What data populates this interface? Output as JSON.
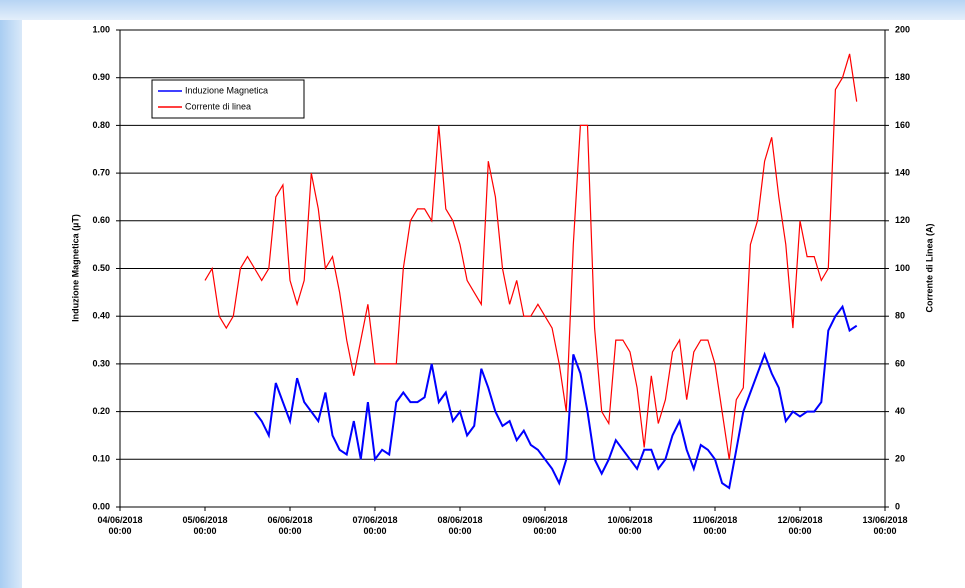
{
  "chart_data": {
    "type": "line",
    "y_label": "Induzione Magnetica (µT)",
    "y2_label": "Corrente di Linea (A)",
    "legend": "top-left",
    "grid": true,
    "xlim": [
      "04/06/2018 00:00",
      "13/06/2018 00:00"
    ],
    "xticks": [
      "04/06/2018 00:00",
      "05/06/2018 00:00",
      "06/06/2018 00:00",
      "07/06/2018 00:00",
      "08/06/2018 00:00",
      "09/06/2018 00:00",
      "10/06/2018 00:00",
      "11/06/2018 00:00",
      "12/06/2018 00:00",
      "13/06/2018 00:00"
    ],
    "ylim": [
      0,
      1
    ],
    "yticks": [
      {
        "value": 0,
        "label": "0.00"
      },
      {
        "value": 0.1,
        "label": "0.10"
      },
      {
        "value": 0.2,
        "label": "0.20"
      },
      {
        "value": 0.3,
        "label": "0.30"
      },
      {
        "value": 0.4,
        "label": "0.40"
      },
      {
        "value": 0.5,
        "label": "0.50"
      },
      {
        "value": 0.6,
        "label": "0.60"
      },
      {
        "value": 0.7,
        "label": "0.70"
      },
      {
        "value": 0.8,
        "label": "0.80"
      },
      {
        "value": 0.9,
        "label": "0.90"
      },
      {
        "value": 1,
        "label": "1.00"
      }
    ],
    "y2lim": [
      0,
      200
    ],
    "y2ticks": [
      0,
      20,
      40,
      60,
      80,
      100,
      120,
      140,
      160,
      180,
      200
    ],
    "x": [
      "05/06/2018 00:00",
      "05/06/2018 02:00",
      "05/06/2018 04:00",
      "05/06/2018 06:00",
      "05/06/2018 08:00",
      "05/06/2018 10:00",
      "05/06/2018 12:00",
      "05/06/2018 14:00",
      "05/06/2018 16:00",
      "05/06/2018 18:00",
      "05/06/2018 20:00",
      "05/06/2018 22:00",
      "06/06/2018 00:00",
      "06/06/2018 02:00",
      "06/06/2018 04:00",
      "06/06/2018 06:00",
      "06/06/2018 08:00",
      "06/06/2018 10:00",
      "06/06/2018 12:00",
      "06/06/2018 14:00",
      "06/06/2018 16:00",
      "06/06/2018 18:00",
      "06/06/2018 20:00",
      "06/06/2018 22:00",
      "07/06/2018 00:00",
      "07/06/2018 02:00",
      "07/06/2018 04:00",
      "07/06/2018 06:00",
      "07/06/2018 08:00",
      "07/06/2018 10:00",
      "07/06/2018 12:00",
      "07/06/2018 14:00",
      "07/06/2018 16:00",
      "07/06/2018 18:00",
      "07/06/2018 20:00",
      "07/06/2018 22:00",
      "08/06/2018 00:00",
      "08/06/2018 02:00",
      "08/06/2018 04:00",
      "08/06/2018 06:00",
      "08/06/2018 08:00",
      "08/06/2018 10:00",
      "08/06/2018 12:00",
      "08/06/2018 14:00",
      "08/06/2018 16:00",
      "08/06/2018 18:00",
      "08/06/2018 20:00",
      "08/06/2018 22:00",
      "09/06/2018 00:00",
      "09/06/2018 02:00",
      "09/06/2018 04:00",
      "09/06/2018 06:00",
      "09/06/2018 08:00",
      "09/06/2018 10:00",
      "09/06/2018 12:00",
      "09/06/2018 14:00",
      "09/06/2018 16:00",
      "09/06/2018 18:00",
      "09/06/2018 20:00",
      "09/06/2018 22:00",
      "10/06/2018 00:00",
      "10/06/2018 02:00",
      "10/06/2018 04:00",
      "10/06/2018 06:00",
      "10/06/2018 08:00",
      "10/06/2018 10:00",
      "10/06/2018 12:00",
      "10/06/2018 14:00",
      "10/06/2018 16:00",
      "10/06/2018 18:00",
      "10/06/2018 20:00",
      "10/06/2018 22:00",
      "11/06/2018 00:00",
      "11/06/2018 02:00",
      "11/06/2018 04:00",
      "11/06/2018 06:00",
      "11/06/2018 08:00",
      "11/06/2018 10:00",
      "11/06/2018 12:00",
      "11/06/2018 14:00",
      "11/06/2018 16:00",
      "11/06/2018 18:00",
      "11/06/2018 20:00",
      "11/06/2018 22:00",
      "12/06/2018 00:00",
      "12/06/2018 02:00",
      "12/06/2018 04:00",
      "12/06/2018 06:00",
      "12/06/2018 08:00",
      "12/06/2018 10:00",
      "12/06/2018 12:00",
      "12/06/2018 14:00",
      "12/06/2018 16:00"
    ],
    "series": [
      {
        "name": "Induzione Magnetica",
        "color": "#0000ff",
        "axis": "y",
        "values": [
          null,
          null,
          null,
          null,
          null,
          null,
          null,
          0.2,
          0.18,
          0.15,
          0.26,
          0.22,
          0.18,
          0.27,
          0.22,
          0.2,
          0.18,
          0.24,
          0.15,
          0.12,
          0.11,
          0.18,
          0.1,
          0.22,
          0.1,
          0.12,
          0.11,
          0.22,
          0.24,
          0.22,
          0.22,
          0.23,
          0.3,
          0.22,
          0.24,
          0.18,
          0.2,
          0.15,
          0.17,
          0.29,
          0.25,
          0.2,
          0.17,
          0.18,
          0.14,
          0.16,
          0.13,
          0.12,
          0.1,
          0.08,
          0.05,
          0.1,
          0.32,
          0.28,
          0.2,
          0.1,
          0.07,
          0.1,
          0.14,
          0.12,
          0.1,
          0.08,
          0.12,
          0.12,
          0.08,
          0.1,
          0.15,
          0.18,
          0.12,
          0.08,
          0.13,
          0.12,
          0.1,
          0.05,
          0.04,
          0.12,
          0.2,
          0.24,
          0.28,
          0.32,
          0.28,
          0.25,
          0.18,
          0.2,
          0.19,
          0.2,
          0.2,
          0.22,
          0.37,
          0.4,
          0.42,
          0.37,
          0.38
        ]
      },
      {
        "name": "Corrente di linea",
        "color": "#ff0000",
        "axis": "y2",
        "values": [
          95,
          100,
          80,
          75,
          80,
          100,
          105,
          100,
          95,
          100,
          130,
          135,
          95,
          85,
          95,
          140,
          125,
          100,
          105,
          90,
          70,
          55,
          70,
          85,
          60,
          60,
          60,
          60,
          100,
          120,
          125,
          125,
          120,
          160,
          125,
          120,
          110,
          95,
          90,
          85,
          145,
          130,
          100,
          85,
          95,
          80,
          80,
          85,
          80,
          75,
          60,
          40,
          110,
          160,
          160,
          75,
          40,
          35,
          70,
          70,
          65,
          50,
          25,
          55,
          35,
          45,
          65,
          70,
          45,
          65,
          70,
          70,
          60,
          40,
          20,
          45,
          50,
          110,
          120,
          145,
          155,
          130,
          110,
          75,
          120,
          105,
          105,
          95,
          100,
          175,
          180,
          190,
          170
        ]
      }
    ]
  }
}
